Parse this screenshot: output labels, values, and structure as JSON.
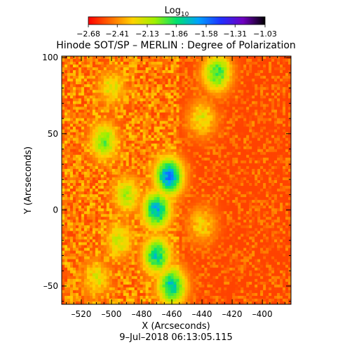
{
  "chart_data": {
    "type": "heatmap",
    "title": "Hinode SOT/SP – MERLIN : Degree of Polarization",
    "xlabel": "X (Arcseconds)",
    "ylabel": "Y (Arcseconds)",
    "date": "9–Jul–2018 06:13:05.115",
    "xlim": [
      -533,
      -381
    ],
    "ylim": [
      -62,
      101
    ],
    "x_ticks": [
      -520,
      -500,
      -480,
      -460,
      -440,
      -420,
      -400
    ],
    "x_tick_labels": [
      "–520",
      "–500",
      "–480",
      "–460",
      "–440",
      "–420",
      "–400"
    ],
    "y_ticks": [
      100,
      50,
      0,
      -50
    ],
    "y_tick_labels": [
      "100",
      "50",
      "0",
      "–50"
    ],
    "colorbar": {
      "label_base": "Log",
      "label_sub": "10",
      "min": -2.68,
      "max": -1.03,
      "ticks": [
        -2.68,
        -2.41,
        -2.13,
        -1.86,
        -1.58,
        -1.31,
        -1.03
      ],
      "tick_labels": [
        "−2.68",
        "−2.41",
        "−2.13",
        "−1.86",
        "−1.58",
        "−1.31",
        "−1.03"
      ],
      "colors": [
        "#ff0000",
        "#ff6a00",
        "#ffd200",
        "#a0f000",
        "#00e070",
        "#00a0ff",
        "#2030ff",
        "#7000c0",
        "#000000"
      ]
    },
    "field_description": {
      "background_level": -2.55,
      "enhanced_regions": [
        {
          "x": -505,
          "y": 45,
          "level": -2.0
        },
        {
          "x": -490,
          "y": 10,
          "level": -2.1
        },
        {
          "x": -470,
          "y": 0,
          "level": -1.7
        },
        {
          "x": -470,
          "y": -30,
          "level": -1.8
        },
        {
          "x": -495,
          "y": -20,
          "level": -2.15
        },
        {
          "x": -462,
          "y": 22,
          "level": -1.6
        },
        {
          "x": -500,
          "y": 80,
          "level": -2.2
        },
        {
          "x": -440,
          "y": 60,
          "level": -2.2
        },
        {
          "x": -440,
          "y": -10,
          "level": -2.25
        },
        {
          "x": -430,
          "y": 90,
          "level": -1.9
        },
        {
          "x": -460,
          "y": -50,
          "level": -1.75
        },
        {
          "x": -510,
          "y": -45,
          "level": -2.2
        }
      ]
    }
  }
}
